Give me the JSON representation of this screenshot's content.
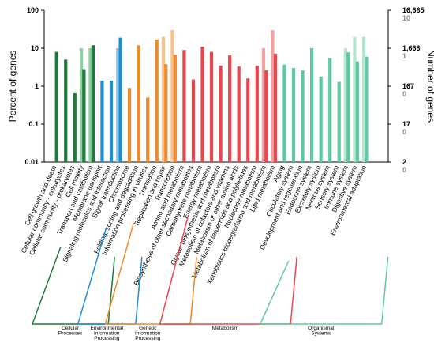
{
  "chart_data": {
    "type": "bar",
    "y_scale": "log",
    "ylim": [
      0.01,
      100
    ],
    "ylabel": "Percent of genes",
    "y2label": "Number of genes",
    "y_ticks": [
      "100",
      "10",
      "1",
      "0.1",
      "0.01"
    ],
    "y2_ticks_dark": [
      "16,665",
      "1,666",
      "167",
      "17",
      "2"
    ],
    "y2_ticks_gray": [
      "10",
      "1",
      "0",
      "0",
      "0"
    ],
    "categories": [
      "Cell growth and death",
      "Cellular community - eukaryotes",
      "Cellular community - prokaryotes",
      "Cell motility",
      "Transport and catabolism",
      "Membrane transport",
      "Signaling molecules and interaction",
      "Signal transduction",
      "Chromosome",
      "Folding, sorting and degradation",
      "Information processing in viruses",
      "Translation",
      "Replication and repair",
      "Transcription",
      "Amino acid metabolism",
      "Biosynthesis of other secondary metabolites",
      "Carbohydrate metabolism",
      "Energy metabolism",
      "Glycan biosynthesis and metabolism",
      "Metabolism of cofactors and vitamins",
      "Metabolism of other amino acids",
      "Metabolism of terpenoids and polyketides",
      "Nucleotide metabolism",
      "Xenobiotics biodegradation and metabolism",
      "Lipid metabolism",
      "Aging",
      "Circulatory system",
      "Development and regeneration",
      "Endocrine system",
      "Excretory system",
      "Nervous system",
      "Sensory system",
      "Immune system",
      "Digestive system",
      "Environmental adaptation"
    ],
    "series": [
      {
        "name": "",
        "color_role": "light",
        "values": [
          0,
          0,
          0,
          10,
          10,
          0,
          0,
          10,
          0,
          0,
          0,
          0,
          20,
          30,
          0,
          0,
          0,
          0,
          0,
          0,
          0,
          0,
          0,
          10,
          30,
          0,
          0,
          0,
          0,
          0,
          0,
          0,
          10,
          20,
          20
        ]
      },
      {
        "name": "",
        "color_role": "dark",
        "values": [
          8,
          5,
          0.65,
          2.8,
          12,
          1.4,
          1.4,
          19,
          0.9,
          12,
          0.5,
          17,
          3.8,
          6.7,
          9,
          1.5,
          11,
          8,
          3.5,
          6.5,
          3.3,
          1.6,
          3.5,
          2.6,
          7.2,
          3.7,
          3,
          2.6,
          10,
          1.8,
          5.5,
          1.3,
          7.8,
          4.5,
          6
        ]
      }
    ],
    "groups": [
      {
        "label": "Cellular Processes",
        "start": 0,
        "end": 4,
        "color": "#1e7a3c"
      },
      {
        "label": "Environmental Information Processing",
        "start": 5,
        "end": 7,
        "color": "#1e8fd0"
      },
      {
        "label": "Genetic Information Processing",
        "start": 8,
        "end": 13,
        "color": "#ef8a2b"
      },
      {
        "label": "Metabolism",
        "start": 14,
        "end": 24,
        "color": "#e8474e"
      },
      {
        "label": "Organismal Systems",
        "start": 25,
        "end": 34,
        "color": "#5ec9a0"
      }
    ],
    "group_colors_light": [
      "#8fcf9f",
      "#8cc8ee",
      "#f7c08c",
      "#f3a0a3",
      "#b3e6cf"
    ],
    "group_colors_dark": [
      "#1e7a3c",
      "#1e8fd0",
      "#ef8a2b",
      "#e8474e",
      "#5ec9a0"
    ]
  }
}
